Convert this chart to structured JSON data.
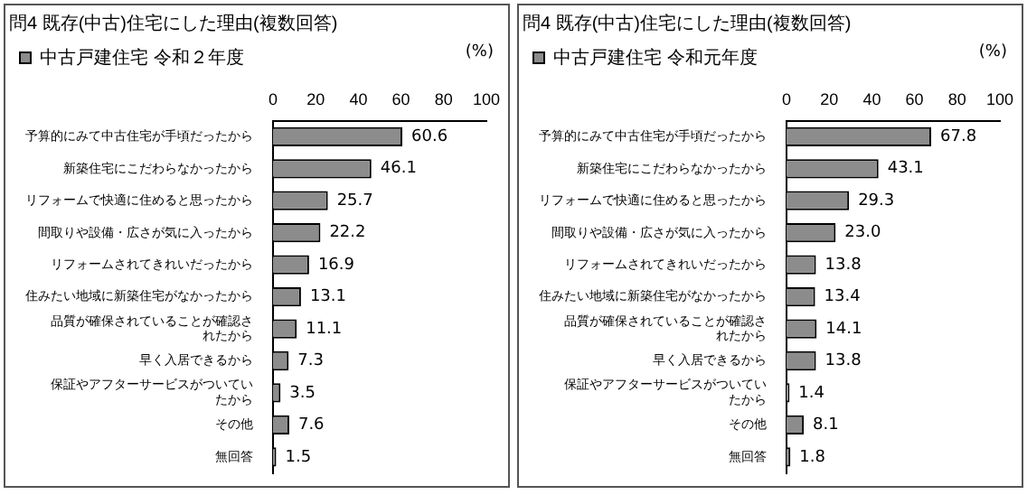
{
  "chart_data": [
    {
      "type": "bar",
      "orientation": "horizontal",
      "title": "問4 既存(中古)住宅にした理由(複数回答)",
      "xlabel": "(%)",
      "categories": [
        "予算的にみて中古住宅が手頃だったから",
        "新築住宅にこだわらなかったから",
        "リフォームで快適に住めると思ったから",
        "間取りや設備・広さが気に入ったから",
        "リフォームされてきれいだったから",
        "住みたい地域に新築住宅がなかったから",
        "品質が確保されていることが確認されたから",
        "早く入居できるから",
        "保証やアフターサービスがついていたから",
        "その他",
        "無回答"
      ],
      "series": [
        {
          "name": "中古戸建住宅 令和２年度",
          "color": "#8c8c8c",
          "values": [
            60.6,
            46.1,
            25.7,
            22.2,
            16.9,
            13.1,
            11.1,
            7.3,
            3.5,
            7.6,
            1.5
          ]
        }
      ],
      "xlim": [
        0,
        100
      ],
      "xticks": [
        0,
        20,
        40,
        60,
        80,
        100
      ],
      "data_labels": true,
      "legend": "top left",
      "grid": false
    },
    {
      "type": "bar",
      "orientation": "horizontal",
      "title": "問4 既存(中古)住宅にした理由(複数回答)",
      "xlabel": "(%)",
      "categories": [
        "予算的にみて中古住宅が手頃だったから",
        "新築住宅にこだわらなかったから",
        "リフォームで快適に住めると思ったから",
        "間取りや設備・広さが気に入ったから",
        "リフォームされてきれいだったから",
        "住みたい地域に新築住宅がなかったから",
        "品質が確保されていることが確認されたから",
        "早く入居できるから",
        "保証やアフターサービスがついていたから",
        "その他",
        "無回答"
      ],
      "series": [
        {
          "name": "中古戸建住宅 令和元年度",
          "color": "#8c8c8c",
          "values": [
            67.8,
            43.1,
            29.3,
            23.0,
            13.8,
            13.4,
            14.1,
            13.8,
            1.4,
            8.1,
            1.8
          ],
          "value_labels": [
            "67.8",
            "43.1",
            "29.3",
            "23.0",
            "13.8",
            "13.4",
            "14.1",
            "13.8",
            "1.4",
            "8.1",
            "1.8"
          ]
        }
      ],
      "xlim": [
        0,
        100
      ],
      "xticks": [
        0,
        20,
        40,
        60,
        80,
        100
      ],
      "data_labels": true,
      "legend": "top left",
      "grid": false
    }
  ]
}
